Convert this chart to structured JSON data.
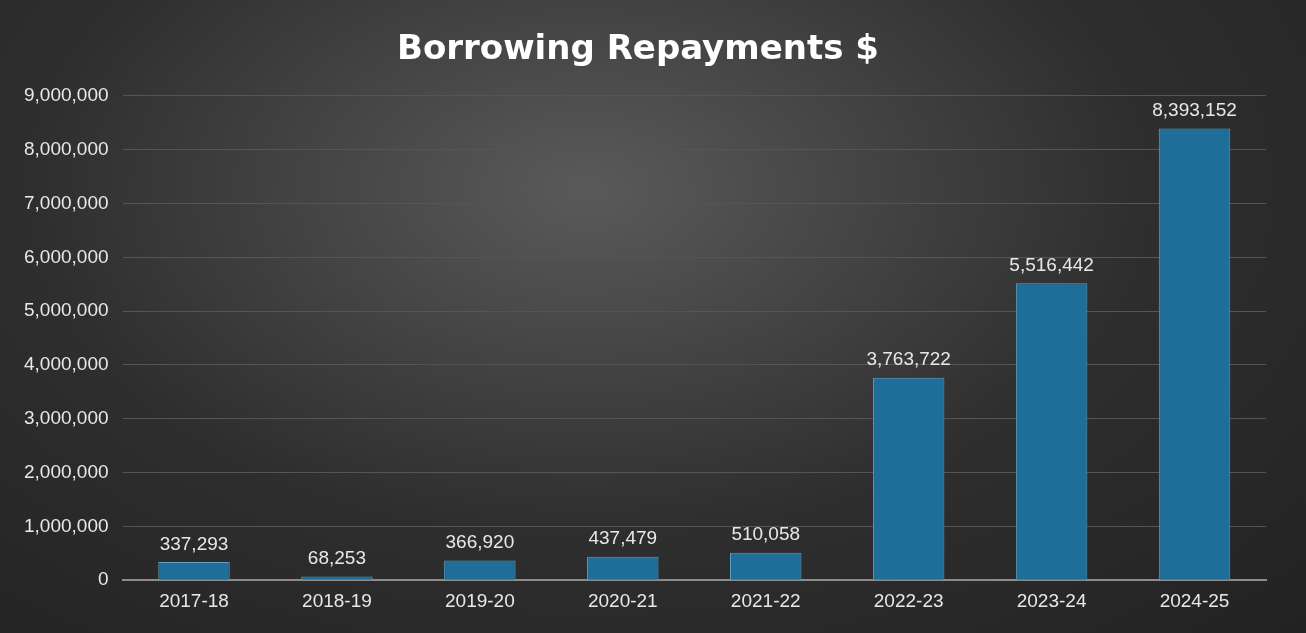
{
  "chart_data": {
    "type": "bar",
    "title": "Borrowing Repayments $",
    "categories": [
      "2017-18",
      "2018-19",
      "2019-20",
      "2020-21",
      "2021-22",
      "2022-23",
      "2023-24",
      "2024-25"
    ],
    "values": [
      337293,
      68253,
      366920,
      437479,
      510058,
      3763722,
      5516442,
      8393152
    ],
    "color": "#1f6e99",
    "ylim": [
      0,
      9000000
    ],
    "yticks": [
      0,
      {
        "value": 1000000,
        "label": "1,000,000"
      },
      {
        "value": 2000000,
        "label": "2,000,000"
      },
      {
        "value": 3000000,
        "label": "3,000,000"
      },
      {
        "value": 4000000,
        "label": "4,000,000"
      },
      {
        "value": 5000000,
        "label": "5,000,000"
      },
      {
        "value": 6000000,
        "label": "6,000,000"
      },
      {
        "value": 7000000,
        "label": "7,000,000"
      },
      {
        "value": 8000000,
        "label": "8,000,000"
      },
      {
        "value": 9000000,
        "label": "9,000,000"
      }
    ],
    "value_labels": [
      "337,293",
      "68,253",
      "366,920",
      "437,479",
      "510,058",
      "3,763,722",
      "5,516,442",
      "8,393,152"
    ],
    "grid": "y",
    "legend": false
  }
}
